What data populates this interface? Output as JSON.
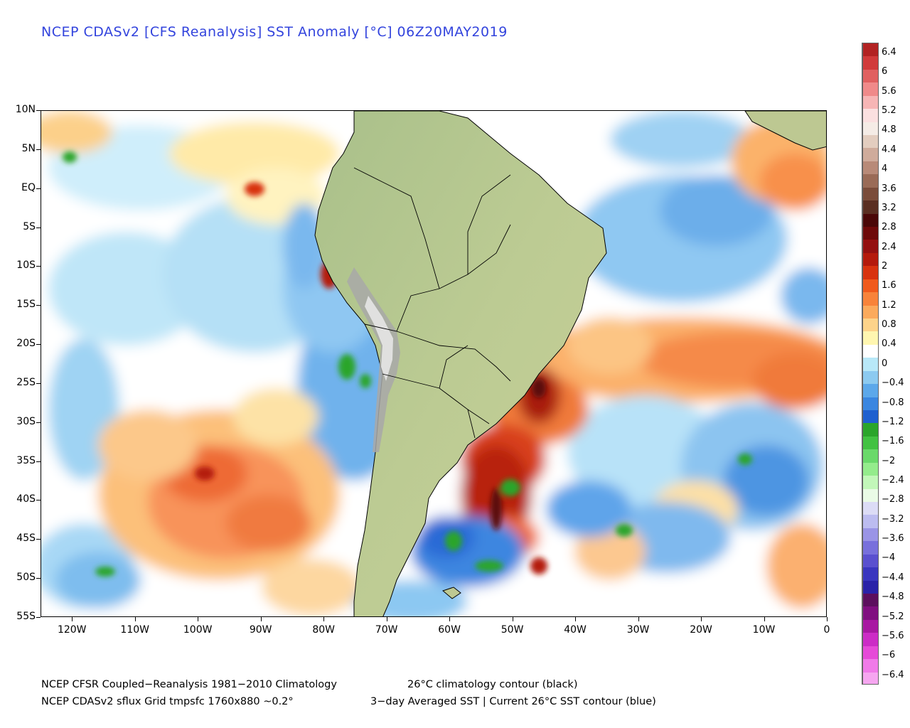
{
  "title": "NCEP CDASv2 [CFS Reanalysis] SST Anomaly [°C] 06Z20MAY2019",
  "axes": {
    "lat_labels": [
      "10N",
      "5N",
      "EQ",
      "5S",
      "10S",
      "15S",
      "20S",
      "25S",
      "30S",
      "35S",
      "40S",
      "45S",
      "50S",
      "55S"
    ],
    "lon_labels": [
      "120W",
      "110W",
      "100W",
      "90W",
      "80W",
      "70W",
      "60W",
      "50W",
      "40W",
      "30W",
      "20W",
      "10W",
      "0"
    ],
    "lat_range": [
      -55,
      10
    ],
    "lon_range": [
      -125,
      0
    ]
  },
  "colorbar": {
    "labels": [
      "6.4",
      "6",
      "5.6",
      "5.2",
      "4.8",
      "4.4",
      "4",
      "3.6",
      "3.2",
      "2.8",
      "2.4",
      "2",
      "1.6",
      "1.2",
      "0.8",
      "0.4",
      "0",
      "−0.4",
      "−0.8",
      "−1.2",
      "−1.6",
      "−2",
      "−2.4",
      "−2.8",
      "−3.2",
      "−3.6",
      "−4",
      "−4.4",
      "−4.8",
      "−5.2",
      "−5.6",
      "−6",
      "−6.4"
    ],
    "colors": [
      "#b22222",
      "#d13a3a",
      "#e06060",
      "#f08a8a",
      "#f7b5b5",
      "#fbe0e0",
      "#f5ece6",
      "#e3cdbf",
      "#cfab9b",
      "#b88a78",
      "#9a6b57",
      "#7a4c3a",
      "#5a2f22",
      "#4a0808",
      "#6e0a0a",
      "#941010",
      "#b41a0c",
      "#d8330f",
      "#f05a1c",
      "#f8833a",
      "#fbaa5c",
      "#fdd38a",
      "#fff6b0",
      "#ffffff",
      "#b8e8f8",
      "#8ccaf0",
      "#5ca8ea",
      "#3a86e0",
      "#1f60cf",
      "#2aa52a",
      "#42c242",
      "#6ad96a",
      "#94ec8c",
      "#c2f7b9",
      "#eafbe6",
      "#dcdcf6",
      "#bcbcf0",
      "#9a94e6",
      "#7870dc",
      "#5a50cf",
      "#3a36bf",
      "#2a22a8",
      "#5c0f5e",
      "#800f80",
      "#a818a2",
      "#cc2cc6",
      "#e64ad8",
      "#f07ae8",
      "#f6a6f0"
    ]
  },
  "footer": {
    "line1_left": "NCEP CFSR Coupled−Reanalysis 1981−2010 Climatology",
    "line1_right": "26°C climatology contour (black)",
    "line2_left": "NCEP CDASv2 sflux Grid tmpsfc 1760x880 ~0.2°",
    "line2_right": "3−day Averaged SST | Current 26°C SST contour (blue)"
  },
  "map": {
    "region": "South America and surrounding Pacific and Atlantic oceans",
    "highlights": [
      {
        "area": "Southwest Atlantic off Brazil, Uruguay and Argentina",
        "anomaly_c": 3.0
      },
      {
        "area": "South Atlantic band 15S-30S",
        "anomaly_c": 1.2
      },
      {
        "area": "Southeast Pacific 30S-45S, 95W-105W",
        "anomaly_c": 1.6
      },
      {
        "area": "Peru and Chile coast",
        "anomaly_c": -1.2
      },
      {
        "area": "South Atlantic 45S-50S, 55W-60W",
        "anomaly_c": -2.0
      },
      {
        "area": "Tropical Atlantic 0-10S, 20W-35W",
        "anomaly_c": -0.8
      },
      {
        "area": "Tropical Atlantic off West Africa 0-10N",
        "anomaly_c": 1.0
      }
    ]
  }
}
